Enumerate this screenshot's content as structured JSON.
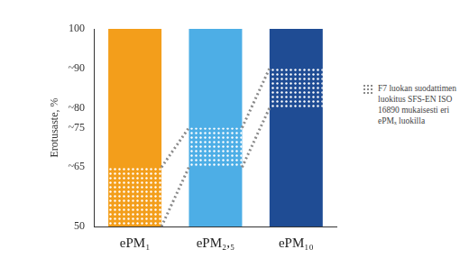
{
  "chart_data": {
    "type": "bar",
    "ylabel": "Erotusaste, %",
    "categories": [
      "ePM₁",
      "ePM₂,₅",
      "ePM₁₀"
    ],
    "values": [
      100,
      100,
      100
    ],
    "colors": [
      "#f39e1b",
      "#4daee6",
      "#1f4c94"
    ],
    "ranges": {
      "name": "F7 luokan suodattimen luokitus SFS-EN ISO 16890 mukaisesti eri ePMₓ luokilla",
      "values": [
        [
          50,
          65
        ],
        [
          65,
          75
        ],
        [
          80,
          90
        ]
      ],
      "color": "#8a8a8a",
      "marker": "dots",
      "line_style": "dotted"
    },
    "ylim": [
      50,
      100
    ],
    "yticks": [
      50,
      {
        "value": 65,
        "label": "~65"
      },
      {
        "value": 75,
        "label": "~75"
      },
      {
        "value": 80,
        "label": "~80"
      },
      {
        "value": 90,
        "label": "~90"
      },
      100
    ],
    "grid": false,
    "legend": "right"
  }
}
